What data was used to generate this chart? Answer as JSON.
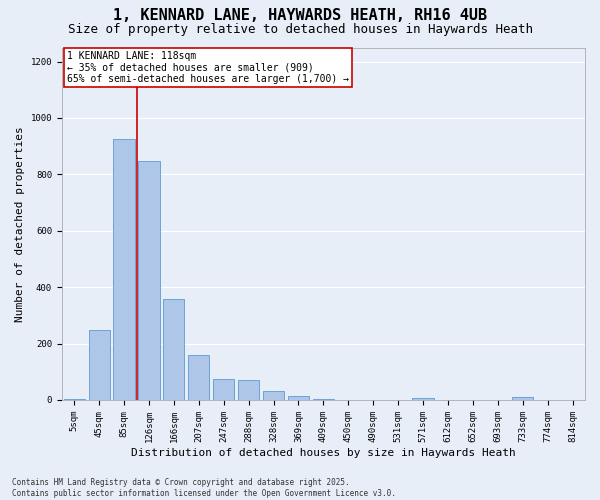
{
  "title": "1, KENNARD LANE, HAYWARDS HEATH, RH16 4UB",
  "subtitle": "Size of property relative to detached houses in Haywards Heath",
  "xlabel": "Distribution of detached houses by size in Haywards Heath",
  "ylabel": "Number of detached properties",
  "categories": [
    "5sqm",
    "45sqm",
    "85sqm",
    "126sqm",
    "166sqm",
    "207sqm",
    "247sqm",
    "288sqm",
    "328sqm",
    "369sqm",
    "409sqm",
    "450sqm",
    "490sqm",
    "531sqm",
    "571sqm",
    "612sqm",
    "652sqm",
    "693sqm",
    "733sqm",
    "774sqm",
    "814sqm"
  ],
  "values": [
    5,
    248,
    925,
    848,
    358,
    158,
    75,
    72,
    32,
    13,
    5,
    1,
    0,
    0,
    8,
    0,
    0,
    0,
    10,
    0,
    0
  ],
  "bar_color": "#aec6e8",
  "bar_edge_color": "#5b9bd5",
  "background_color": "#e8eef7",
  "grid_color": "#ffffff",
  "vline_x": 2.5,
  "vline_color": "#cc0000",
  "annotation_text": "1 KENNARD LANE: 118sqm\n← 35% of detached houses are smaller (909)\n65% of semi-detached houses are larger (1,700) →",
  "annotation_box_color": "#cc0000",
  "ylim": [
    0,
    1250
  ],
  "yticks": [
    0,
    200,
    400,
    600,
    800,
    1000,
    1200
  ],
  "footer_text": "Contains HM Land Registry data © Crown copyright and database right 2025.\nContains public sector information licensed under the Open Government Licence v3.0.",
  "title_fontsize": 11,
  "subtitle_fontsize": 9,
  "tick_fontsize": 6.5,
  "ylabel_fontsize": 8,
  "xlabel_fontsize": 8,
  "annotation_fontsize": 7,
  "footer_fontsize": 5.5
}
